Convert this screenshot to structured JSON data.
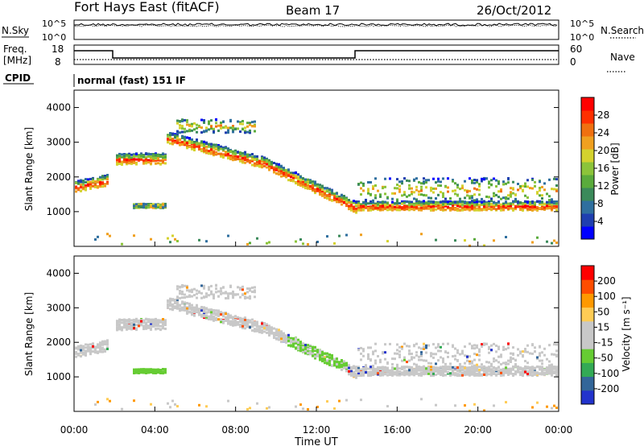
{
  "header": {
    "station": "Fort Hays East (fitACF)",
    "beam": "Beam 17",
    "date": "26/Oct/2012"
  },
  "top_panels": {
    "nsky_label": "N.Sky",
    "nsearch_label": "N.Search",
    "noise_ticks_left": [
      "10^5",
      "10^0"
    ],
    "noise_ticks_right": [
      "10^5",
      "10^0"
    ],
    "freq_label_1": "Freq.",
    "freq_label_2": "[MHz]",
    "freq_ticks": [
      "18",
      "8"
    ],
    "nave_label": "Nave",
    "nave_ticks": [
      "60",
      "0"
    ],
    "cpid_label": "CPID",
    "cpid_text": "normal (fast) 151 IF"
  },
  "colors": {
    "power": [
      "#0000ff",
      "#1f3fb0",
      "#2f6f9f",
      "#3b8a5a",
      "#5aab3c",
      "#8cc43a",
      "#d4d22e",
      "#f0a020",
      "#f07010",
      "#ff3000",
      "#ff0000"
    ],
    "velocity": [
      "#ff0000",
      "#ff4d00",
      "#ff9900",
      "#ffcc55",
      "#c8c8c8",
      "#c8c8c8",
      "#66cc33",
      "#33aa55",
      "#336699",
      "#2233cc"
    ]
  },
  "chart_data": [
    {
      "type": "heatmap",
      "name": "power",
      "ylabel": "Slant Range [km]",
      "y_ticks": [
        "1000",
        "2000",
        "3000",
        "4000"
      ],
      "ylim": [
        0,
        4500
      ],
      "xlim": [
        0,
        24
      ],
      "colorbar_label": "Power [dB]",
      "colorbar_ticks": [
        "4",
        "8",
        "12",
        "16",
        "20",
        "24",
        "28"
      ],
      "colorbar_range": [
        0,
        32
      ]
    },
    {
      "type": "heatmap",
      "name": "velocity",
      "ylabel": "Slant Range [km]",
      "y_ticks": [
        "1000",
        "2000",
        "3000",
        "4000"
      ],
      "ylim": [
        0,
        4500
      ],
      "xlim": [
        0,
        24
      ],
      "colorbar_label": "Velocity [m s⁻¹]",
      "colorbar_ticks": [
        "200",
        "100",
        "50",
        "15",
        "-15",
        "-50",
        "-100",
        "-200"
      ]
    }
  ],
  "x_axis": {
    "ticks": [
      "00:00",
      "04:00",
      "08:00",
      "12:00",
      "16:00",
      "20:00",
      "00:00"
    ],
    "label": "Time UT"
  }
}
